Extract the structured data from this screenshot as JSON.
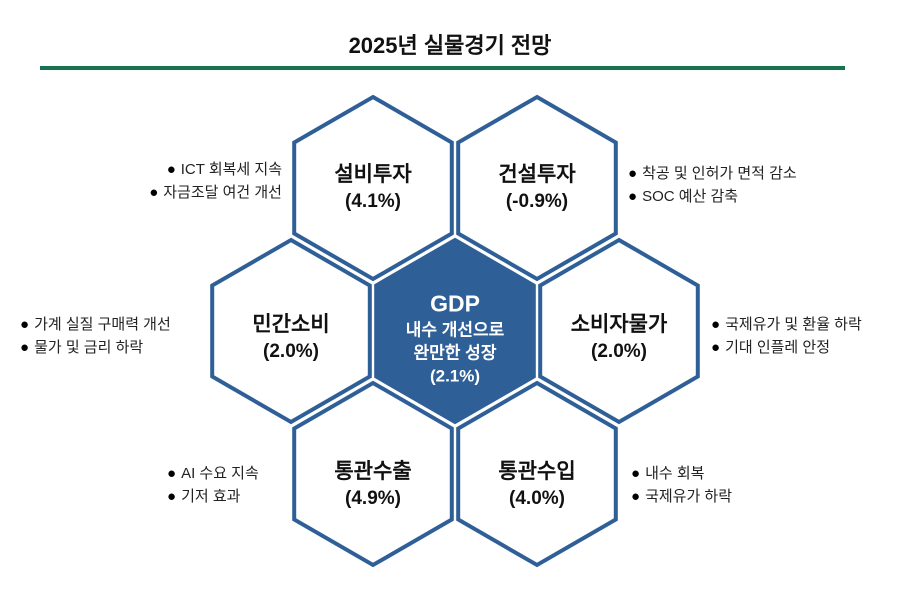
{
  "title": "2025년 실물경기 전망",
  "colors": {
    "rule": "#17734f",
    "hex_stroke": "#2f5f97",
    "gdp_fill": "#2f5f97"
  },
  "center": {
    "name": "GDP",
    "line1": "내수 개선으로",
    "line2": "완만한 성장",
    "value": "(2.1%)"
  },
  "hexes": [
    {
      "name": "설비투자",
      "value": "(4.1%)",
      "bullets": [
        "ICT 회복세 지속",
        "자금조달 여건 개선"
      ]
    },
    {
      "name": "건설투자",
      "value": "(-0.9%)",
      "bullets": [
        "착공 및 인허가 면적 감소",
        "SOC 예산 감축"
      ]
    },
    {
      "name": "민간소비",
      "value": "(2.0%)",
      "bullets": [
        "가계 실질 구매력 개선",
        "물가 및 금리 하락"
      ]
    },
    {
      "name": "소비자물가",
      "value": "(2.0%)",
      "bullets": [
        "국제유가 및 환율 하락",
        "기대 인플레 안정"
      ]
    },
    {
      "name": "통관수출",
      "value": "(4.9%)",
      "bullets": [
        "AI 수요 지속",
        "기저 효과"
      ]
    },
    {
      "name": "통관수입",
      "value": "(4.0%)",
      "bullets": [
        "내수 회복",
        "국제유가 하락"
      ]
    }
  ]
}
